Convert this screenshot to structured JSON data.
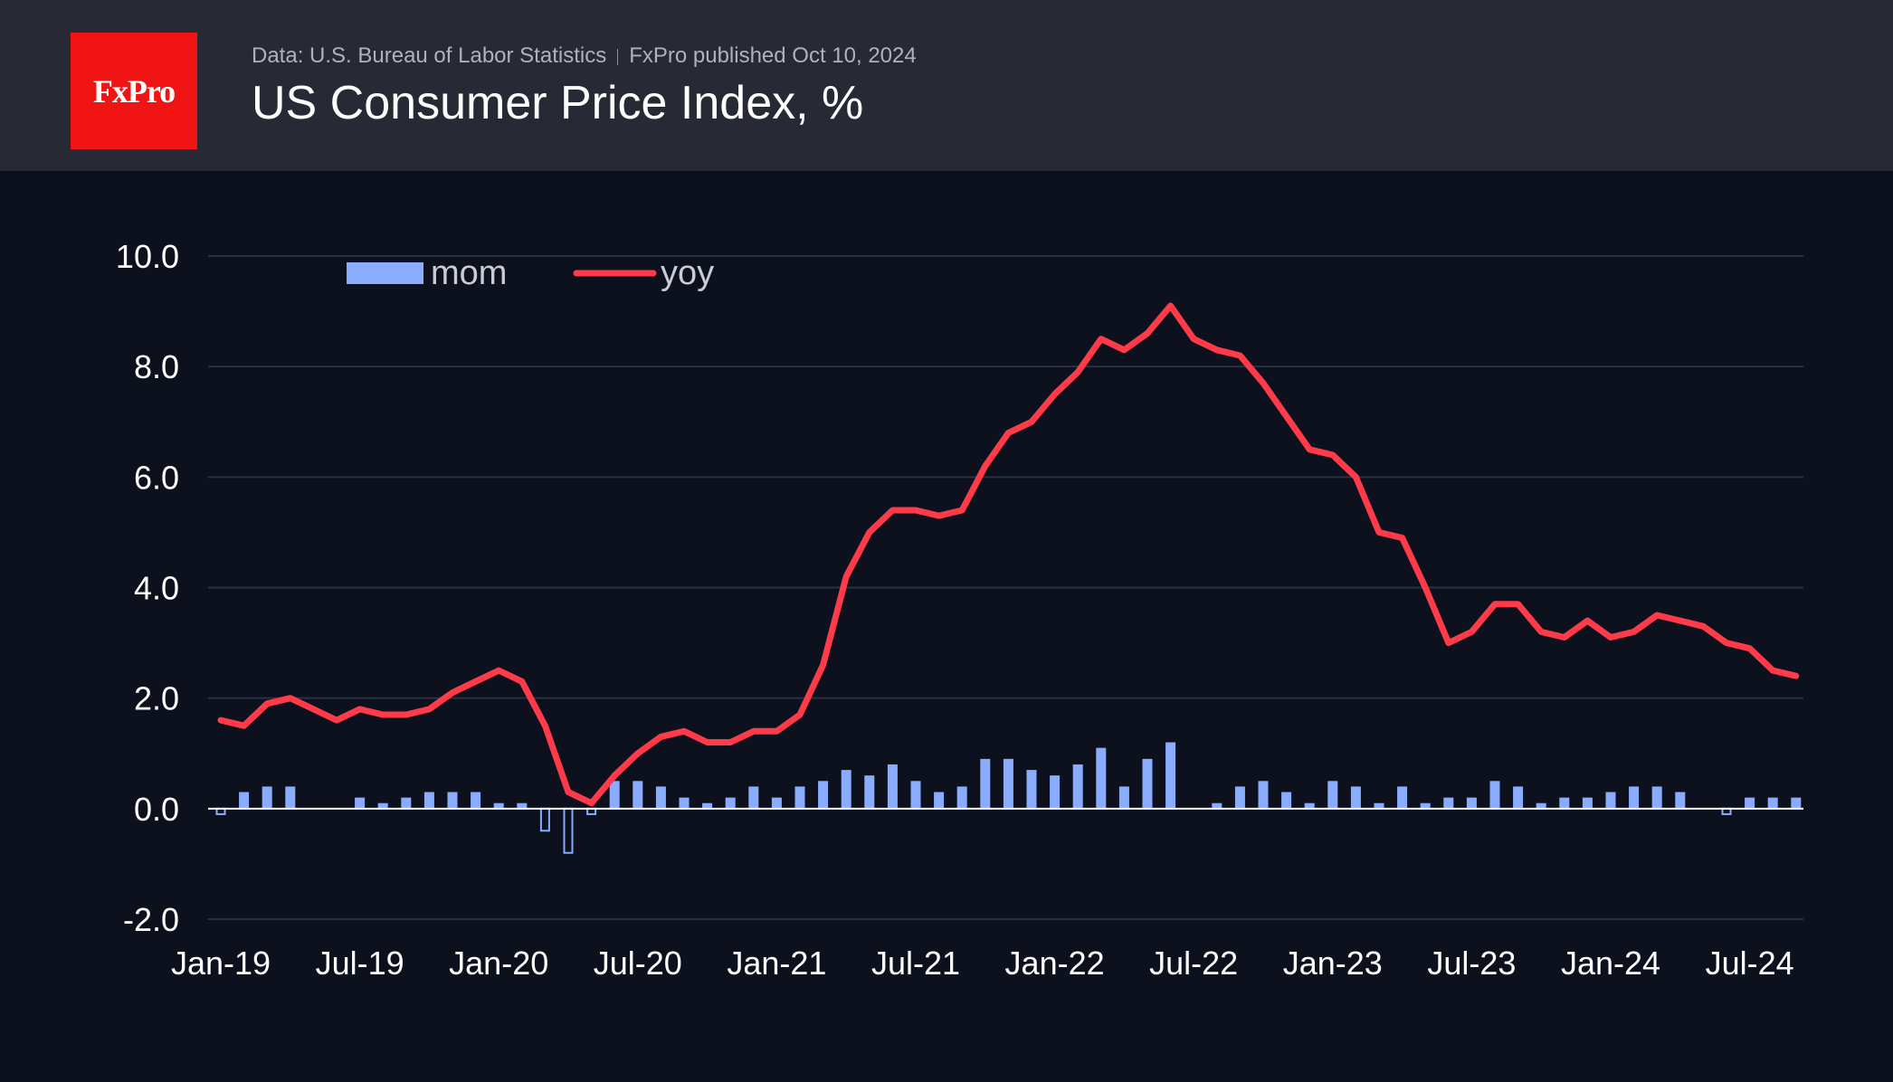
{
  "header": {
    "logo_text": "FxPro",
    "source": "Data: U.S. Bureau of Labor Statistics",
    "published": "FxPro published Oct 10, 2024",
    "title": "US Consumer Price Index, %"
  },
  "colors": {
    "background": "#0c111d",
    "header_bg": "#272a35",
    "logo_bg": "#f01414",
    "mom": "#8aacff",
    "yoy": "#ff3b4a",
    "grid": "#2b313f"
  },
  "chart_data": {
    "type": "bar",
    "title": "US Consumer Price Index, %",
    "xlabel": "",
    "ylabel": "",
    "ylim": [
      -2,
      10
    ],
    "yticks": [
      "10.0",
      "8.0",
      "6.0",
      "4.0",
      "2.0",
      "0.0",
      "-2.0"
    ],
    "xticks": [
      {
        "label": "Jan-19",
        "index": 0
      },
      {
        "label": "Jul-19",
        "index": 6
      },
      {
        "label": "Jan-20",
        "index": 12
      },
      {
        "label": "Jul-20",
        "index": 18
      },
      {
        "label": "Jan-21",
        "index": 24
      },
      {
        "label": "Jul-21",
        "index": 30
      },
      {
        "label": "Jan-22",
        "index": 36
      },
      {
        "label": "Jul-22",
        "index": 42
      },
      {
        "label": "Jan-23",
        "index": 48
      },
      {
        "label": "Jul-23",
        "index": 54
      },
      {
        "label": "Jan-24",
        "index": 60
      },
      {
        "label": "Jul-24",
        "index": 66
      }
    ],
    "legend": {
      "position": "top-left",
      "mom_label": "mom",
      "yoy_label": "yoy"
    },
    "series": [
      {
        "name": "mom",
        "type": "bar",
        "values": [
          -0.1,
          0.3,
          0.4,
          0.4,
          0.0,
          0.0,
          0.2,
          0.1,
          0.2,
          0.3,
          0.3,
          0.3,
          0.1,
          0.1,
          -0.4,
          -0.8,
          -0.1,
          0.5,
          0.5,
          0.4,
          0.2,
          0.1,
          0.2,
          0.4,
          0.2,
          0.4,
          0.5,
          0.7,
          0.6,
          0.8,
          0.5,
          0.3,
          0.4,
          0.9,
          0.9,
          0.7,
          0.6,
          0.8,
          1.1,
          0.4,
          0.9,
          1.2,
          0.0,
          0.1,
          0.4,
          0.5,
          0.3,
          0.1,
          0.5,
          0.4,
          0.1,
          0.4,
          0.1,
          0.2,
          0.2,
          0.5,
          0.4,
          0.1,
          0.2,
          0.2,
          0.3,
          0.4,
          0.4,
          0.3,
          0.0,
          -0.1,
          0.2,
          0.2,
          0.2
        ]
      },
      {
        "name": "yoy",
        "type": "line",
        "values": [
          1.6,
          1.5,
          1.9,
          2.0,
          1.8,
          1.6,
          1.8,
          1.7,
          1.7,
          1.8,
          2.1,
          2.3,
          2.5,
          2.3,
          1.5,
          0.3,
          0.1,
          0.6,
          1.0,
          1.3,
          1.4,
          1.2,
          1.2,
          1.4,
          1.4,
          1.7,
          2.6,
          4.2,
          5.0,
          5.4,
          5.4,
          5.3,
          5.4,
          6.2,
          6.8,
          7.0,
          7.5,
          7.9,
          8.5,
          8.3,
          8.6,
          9.1,
          8.5,
          8.3,
          8.2,
          7.7,
          7.1,
          6.5,
          6.4,
          6.0,
          5.0,
          4.9,
          4.0,
          3.0,
          3.2,
          3.7,
          3.7,
          3.2,
          3.1,
          3.4,
          3.1,
          3.2,
          3.5,
          3.4,
          3.3,
          3.0,
          2.9,
          2.5,
          2.4
        ]
      }
    ]
  }
}
